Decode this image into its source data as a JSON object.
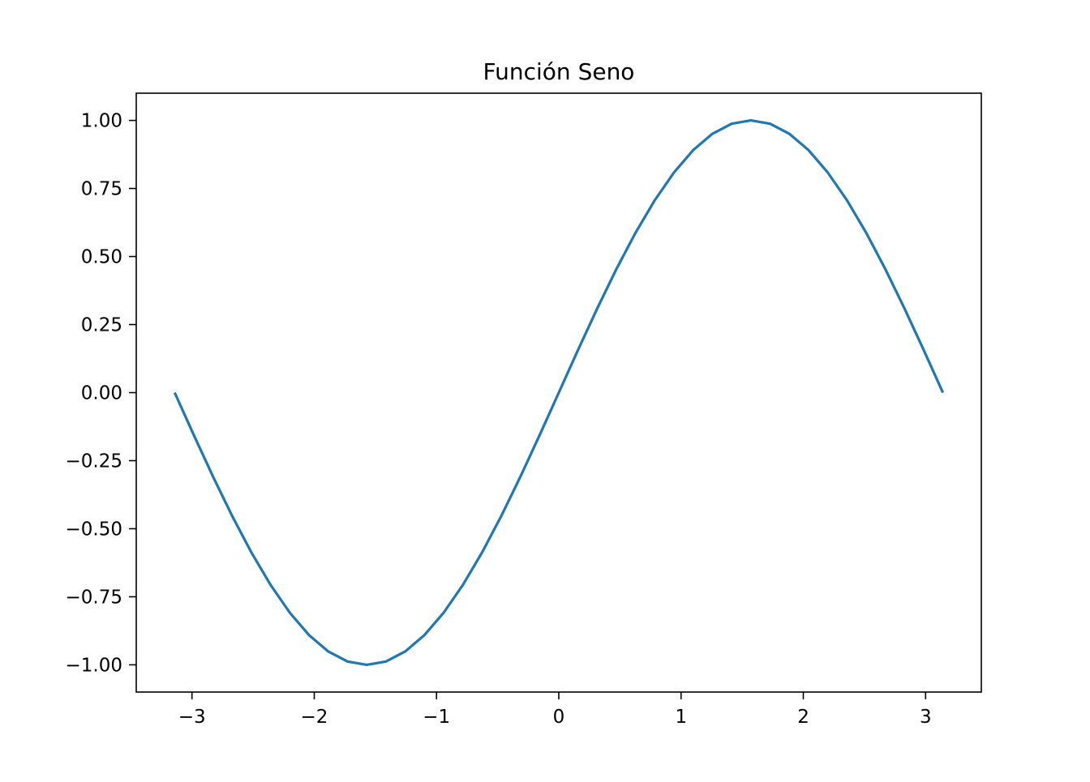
{
  "chart_data": {
    "type": "line",
    "title": "Función Seno",
    "xlabel": "",
    "ylabel": "",
    "xlim": [
      -3.4558,
      3.4558
    ],
    "ylim": [
      -1.1,
      1.1
    ],
    "grid": false,
    "legend": "none",
    "x_ticks": [
      -3,
      -2,
      -1,
      0,
      1,
      2,
      3
    ],
    "x_tick_labels": [
      "−3",
      "−2",
      "−1",
      "0",
      "1",
      "2",
      "3"
    ],
    "y_ticks": [
      1.0,
      0.75,
      0.5,
      0.25,
      0.0,
      -0.25,
      -0.5,
      -0.75,
      -1.0
    ],
    "y_tick_labels": [
      "1.00",
      "0.75",
      "0.50",
      "0.25",
      "0.00",
      "−0.25",
      "−0.50",
      "−0.75",
      "−1.00"
    ],
    "series": [
      {
        "color": "#1f77b4",
        "x": [
          -3.1416,
          -2.9845,
          -2.8274,
          -2.6704,
          -2.5133,
          -2.3562,
          -2.1991,
          -2.042,
          -1.885,
          -1.7279,
          -1.5708,
          -1.4137,
          -1.2566,
          -1.0996,
          -0.9425,
          -0.7854,
          -0.6283,
          -0.4712,
          -0.3142,
          -0.1571,
          0.0,
          0.1571,
          0.3142,
          0.4712,
          0.6283,
          0.7854,
          0.9425,
          1.0996,
          1.2566,
          1.4137,
          1.5708,
          1.7279,
          1.885,
          2.042,
          2.1991,
          2.3562,
          2.5133,
          2.6704,
          2.8274,
          2.9845,
          3.1416
        ],
        "y": [
          0.0,
          -0.1564,
          -0.309,
          -0.454,
          -0.5878,
          -0.7071,
          -0.809,
          -0.891,
          -0.9511,
          -0.9877,
          -1.0,
          -0.9877,
          -0.9511,
          -0.891,
          -0.809,
          -0.7071,
          -0.5878,
          -0.454,
          -0.309,
          -0.1564,
          0.0,
          0.1564,
          0.309,
          0.454,
          0.5878,
          0.7071,
          0.809,
          0.891,
          0.9511,
          0.9877,
          1.0,
          0.9877,
          0.9511,
          0.891,
          0.809,
          0.7071,
          0.5878,
          0.454,
          0.309,
          0.1564,
          0.0
        ]
      }
    ]
  }
}
